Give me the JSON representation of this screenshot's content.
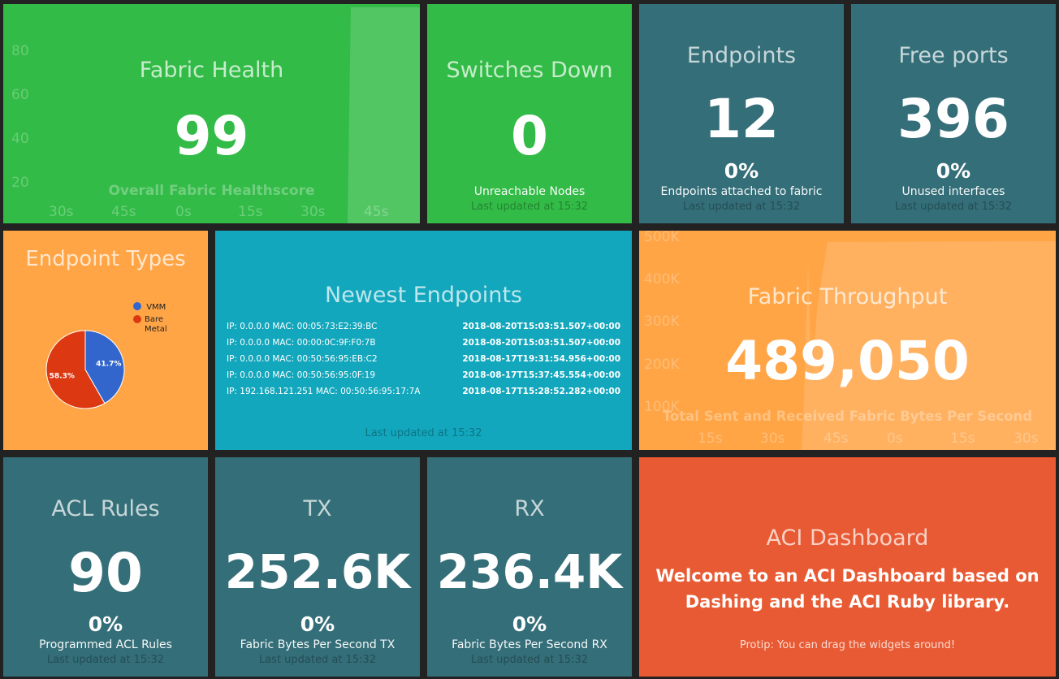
{
  "fabric_health": {
    "title": "Fabric Health",
    "value": "99",
    "more": "Overall Fabric Healthscore",
    "y_ticks": [
      "80",
      "60",
      "40",
      "20"
    ],
    "x_ticks": [
      "30s",
      "45s",
      "0s",
      "15s",
      "30s",
      "45s"
    ]
  },
  "switches_down": {
    "title": "Switches Down",
    "value": "0",
    "more": "Unreachable Nodes",
    "updated": "Last updated at 15:32"
  },
  "endpoints": {
    "title": "Endpoints",
    "value": "12",
    "change": "0%",
    "more": "Endpoints attached to fabric",
    "updated": "Last updated at 15:32"
  },
  "free_ports": {
    "title": "Free ports",
    "value": "396",
    "change": "0%",
    "more": "Unused interfaces",
    "updated": "Last updated at 15:32"
  },
  "endpoint_types": {
    "title": "Endpoint Types",
    "legend": [
      {
        "label": "VMM",
        "color": "#3366cc"
      },
      {
        "label": "Bare Metal",
        "color": "#dc3912"
      }
    ],
    "slices": [
      {
        "label": "41.7%",
        "value": 41.7,
        "color": "#3366cc"
      },
      {
        "label": "58.3%",
        "value": 58.3,
        "color": "#dc3912"
      }
    ]
  },
  "newest_endpoints": {
    "title": "Newest Endpoints",
    "rows": [
      {
        "label": "IP: 0.0.0.0 MAC: 00:05:73:E2:39:BC",
        "value": "2018-08-20T15:03:51.507+00:00"
      },
      {
        "label": "IP: 0.0.0.0 MAC: 00:00:0C:9F:F0:7B",
        "value": "2018-08-20T15:03:51.507+00:00"
      },
      {
        "label": "IP: 0.0.0.0 MAC: 00:50:56:95:EB:C2",
        "value": "2018-08-17T19:31:54.956+00:00"
      },
      {
        "label": "IP: 0.0.0.0 MAC: 00:50:56:95:0F:19",
        "value": "2018-08-17T15:37:45.554+00:00"
      },
      {
        "label": "IP: 192.168.121.251 MAC: 00:50:56:95:17:7A",
        "value": "2018-08-17T15:28:52.282+00:00"
      }
    ],
    "updated": "Last updated at 15:32"
  },
  "fabric_throughput": {
    "title": "Fabric Throughput",
    "value": "489,050",
    "more": "Total Sent and Received Fabric Bytes Per Second",
    "y_ticks": [
      "500K",
      "400K",
      "300K",
      "200K",
      "100K"
    ],
    "x_ticks": [
      "15s",
      "30s",
      "45s",
      "0s",
      "15s",
      "30s"
    ]
  },
  "acl_rules": {
    "title": "ACL Rules",
    "value": "90",
    "change": "0%",
    "more": "Programmed ACL Rules",
    "updated": "Last updated at 15:32"
  },
  "tx": {
    "title": "TX",
    "value": "252.6K",
    "change": "0%",
    "more": "Fabric Bytes Per Second TX",
    "updated": "Last updated at 15:32"
  },
  "rx": {
    "title": "RX",
    "value": "236.4K",
    "change": "0%",
    "more": "Fabric Bytes Per Second RX",
    "updated": "Last updated at 15:32"
  },
  "aci_dashboard": {
    "title": "ACI Dashboard",
    "text_line1": "Welcome to an ACI Dashboard based on",
    "text_line2": "Dashing and the ACI Ruby library.",
    "more": "Protip: You can drag the widgets around!"
  }
}
